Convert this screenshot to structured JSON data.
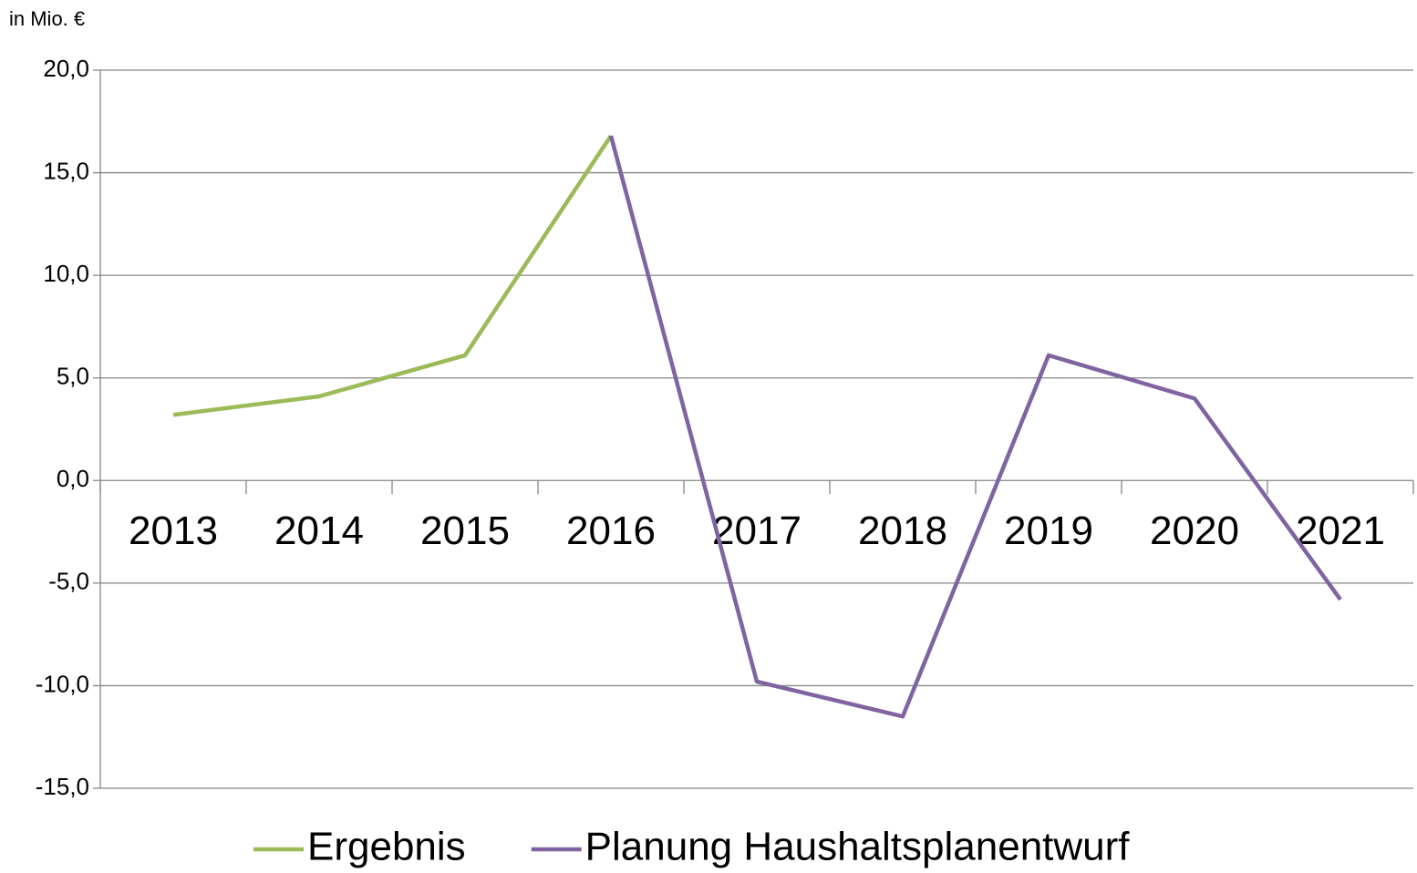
{
  "chart_data": {
    "type": "line",
    "y_axis_label": "in Mio. €",
    "categories": [
      "2013",
      "2014",
      "2015",
      "2016",
      "2017",
      "2018",
      "2019",
      "2020",
      "2021"
    ],
    "series": [
      {
        "name": "Ergebnis",
        "color": "#9bbb59",
        "values": [
          3.2,
          4.1,
          6.1,
          16.8,
          null,
          null,
          null,
          null,
          null
        ]
      },
      {
        "name": "Planung Haushaltsplanentwurf",
        "color": "#8064a2",
        "values": [
          null,
          null,
          null,
          16.8,
          -9.8,
          -11.5,
          6.1,
          4.0,
          -5.8
        ]
      }
    ],
    "ylim": [
      -15,
      20
    ],
    "yticks": [
      {
        "value": -15,
        "label": "-15,0"
      },
      {
        "value": -10,
        "label": "-10,0"
      },
      {
        "value": -5,
        "label": "-5,0"
      },
      {
        "value": 0,
        "label": "0,0"
      },
      {
        "value": 5,
        "label": "5,0"
      },
      {
        "value": 10,
        "label": "10,0"
      },
      {
        "value": 15,
        "label": "15,0"
      },
      {
        "value": 20,
        "label": "20,0"
      }
    ],
    "grid": true,
    "legend": "bottom"
  }
}
